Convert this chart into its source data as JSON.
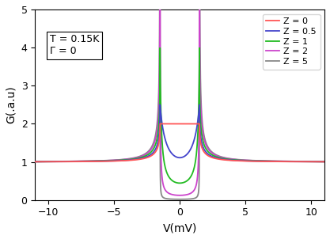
{
  "title": "",
  "xlabel": "V(mV)",
  "ylabel": "G(.a.u)",
  "xlim": [
    -11,
    11
  ],
  "ylim": [
    0,
    5
  ],
  "xticks": [
    -10,
    -5,
    0,
    5,
    10
  ],
  "yticks": [
    0,
    1,
    2,
    3,
    4,
    5
  ],
  "annotation_text": "T = 0.15K\nΓ = 0",
  "Delta": 1.5,
  "T_K": 0.15,
  "Z_values": [
    0,
    0.5,
    1,
    2,
    5
  ],
  "colors": [
    "#FF5555",
    "#4444CC",
    "#22BB22",
    "#CC44CC",
    "#888888"
  ],
  "legend_labels": [
    "Z = 0",
    "Z = 0.5",
    "Z = 1",
    "Z = 2",
    "Z = 5"
  ],
  "figsize": [
    4.17,
    3.02
  ],
  "dpi": 100,
  "annotation_fontsize": 9,
  "legend_fontsize": 8,
  "tick_fontsize": 9,
  "axis_fontsize": 10
}
